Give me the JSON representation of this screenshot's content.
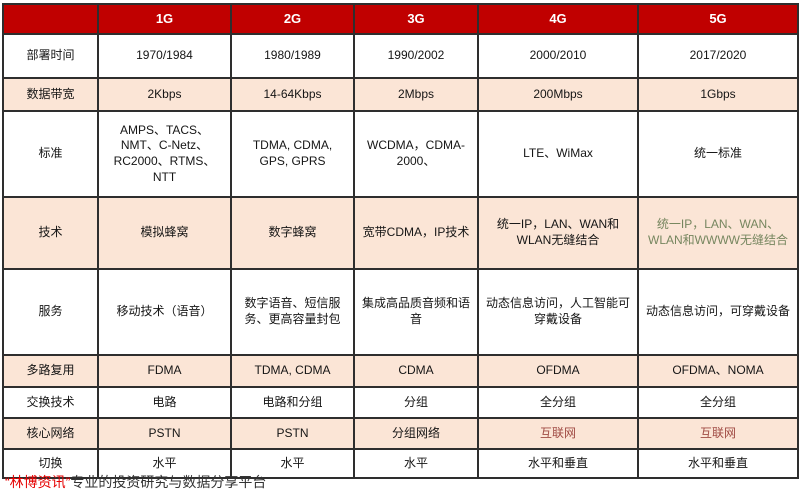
{
  "chart_data": {
    "type": "table",
    "columns": [
      "",
      "1G",
      "2G",
      "3G",
      "4G",
      "5G"
    ],
    "rows": [
      {
        "label": "部署时间",
        "values": [
          "1970/1984",
          "1980/1989",
          "1990/2002",
          "2000/2010",
          "2017/2020"
        ]
      },
      {
        "label": "数据带宽",
        "values": [
          "2Kbps",
          "14-64Kbps",
          "2Mbps",
          "200Mbps",
          "1Gbps"
        ]
      },
      {
        "label": "标准",
        "values": [
          "AMPS、TACS、NMT、C-Netz、RC2000、RTMS、NTT",
          "TDMA, CDMA, GPS, GPRS",
          "WCDMA，CDMA-2000、",
          "LTE、WiMax",
          "统一标准"
        ]
      },
      {
        "label": "技术",
        "values": [
          "模拟蜂窝",
          "数字蜂窝",
          "宽带CDMA，IP技术",
          "统一IP，LAN、WAN和WLAN无缝结合",
          "统一IP，LAN、WAN、WLAN和WWWW无缝结合"
        ]
      },
      {
        "label": "服务",
        "values": [
          "移动技术（语音）",
          "数字语音、短信服务、更高容量封包",
          "集成高品质音频和语音",
          "动态信息访问，人工智能可穿戴设备",
          "动态信息访问，可穿戴设备"
        ]
      },
      {
        "label": "多路复用",
        "values": [
          "FDMA",
          "TDMA, CDMA",
          "CDMA",
          "OFDMA",
          "OFDMA、NOMA"
        ]
      },
      {
        "label": "交换技术",
        "values": [
          "电路",
          "电路和分组",
          "分组",
          "全分组",
          "全分组"
        ]
      },
      {
        "label": "核心网络",
        "values": [
          "PSTN",
          "PSTN",
          "分组网络",
          "互联网",
          "互联网"
        ]
      },
      {
        "label": "切换",
        "values": [
          "水平",
          "水平",
          "水平",
          "水平和垂直",
          "水平和垂直"
        ]
      }
    ]
  },
  "table_style": {
    "shaded_rows": [
      1,
      3,
      5,
      7
    ],
    "cell_colors": {
      "3.4": "#76865F",
      "7.3": "#A04B44",
      "7.4": "#A04B44"
    }
  },
  "footer": {
    "brand": "“林博资讯”",
    "tagline": "专业的投资研究与数据分享平台"
  },
  "colors": {
    "header_bg": "#C00000",
    "header_text": "#FFFFFF",
    "shaded_row_bg": "#FBE5D6",
    "plain_row_bg": "#FFFFFF",
    "border": "#2E2E2E",
    "text": "#151515",
    "core_network_highlight": "#A04B44",
    "tech_5g_text": "#76865F",
    "footer_brand": "#E60000",
    "footer_text": "#333333"
  }
}
